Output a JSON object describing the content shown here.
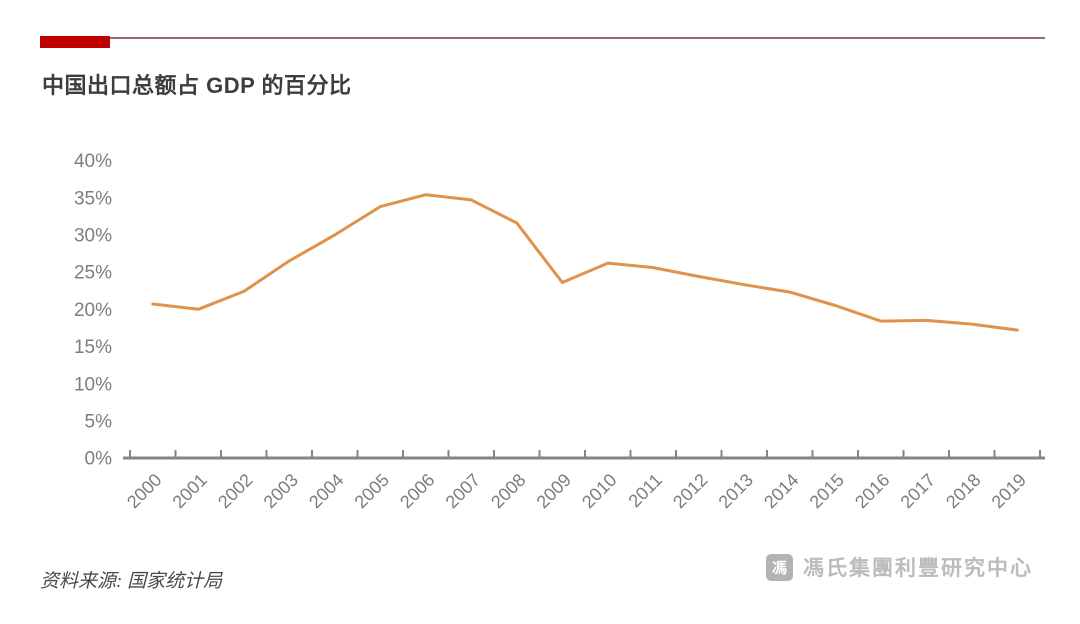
{
  "title": "中国出口总额占 GDP 的百分比",
  "source": "资料来源: 国家统计局",
  "branding": {
    "logo_glyph": "馮",
    "name": "馮氏集團利豐研究中心"
  },
  "header": {
    "accent_block_color": "#C00000",
    "accent_rule_color": "#9B6B6B"
  },
  "chart_data": {
    "type": "line",
    "title": "中国出口总额占 GDP 的百分比",
    "categories": [
      "2000",
      "2001",
      "2002",
      "2003",
      "2004",
      "2005",
      "2006",
      "2007",
      "2008",
      "2009",
      "2010",
      "2011",
      "2012",
      "2013",
      "2014",
      "2015",
      "2016",
      "2017",
      "2018",
      "2019"
    ],
    "values": [
      20.7,
      20.0,
      22.4,
      26.5,
      30.0,
      33.8,
      35.4,
      34.7,
      31.6,
      23.6,
      26.2,
      25.6,
      24.4,
      23.3,
      22.3,
      20.5,
      18.4,
      18.5,
      18.0,
      17.2
    ],
    "xlabel": "",
    "ylabel": "",
    "ylim": [
      0,
      40
    ],
    "ytick_step": 5,
    "y_tick_labels": [
      "0%",
      "5%",
      "10%",
      "15%",
      "20%",
      "25%",
      "30%",
      "35%",
      "40%"
    ],
    "grid": false,
    "legend": false,
    "line_color": "#E0924C",
    "axis_color": "#858585",
    "tick_label_color": "#7d7d7d"
  }
}
